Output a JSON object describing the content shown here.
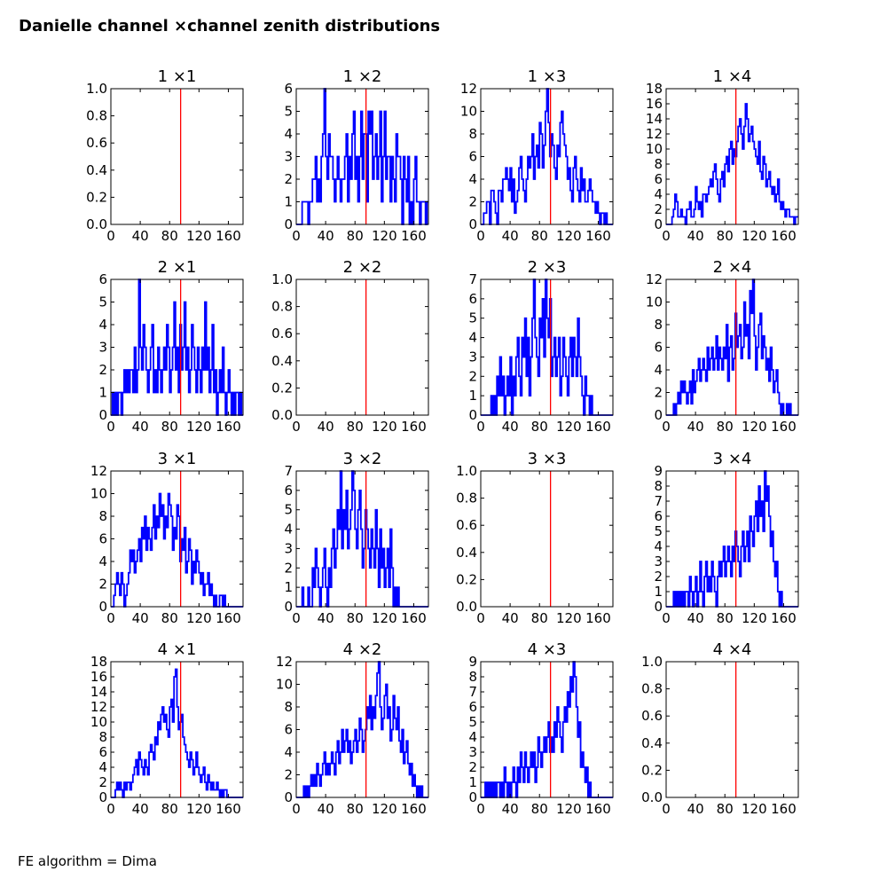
{
  "figure": {
    "title": "Danielle channel ×channel zenith distributions",
    "footer": "FE algorithm = Dima"
  },
  "colors": {
    "histogram": "#0000ff",
    "reference_line": "#ff0000",
    "axes": "#000000"
  },
  "chart_data": {
    "type": "step",
    "layout": {
      "rows": 4,
      "cols": 4
    },
    "x_range": [
      0,
      180
    ],
    "x_ticks": [
      0,
      40,
      80,
      120,
      160
    ],
    "reference_line_x": 95,
    "bin_width": 2,
    "panels": [
      {
        "title": "1 ×1",
        "ylim": [
          0,
          1.0
        ],
        "y_ticks": [
          "0.0",
          "0.2",
          "0.4",
          "0.6",
          "0.8",
          "1.0"
        ],
        "counts": []
      },
      {
        "title": "1 ×2",
        "ylim": [
          0,
          6
        ],
        "y_ticks": [
          "0",
          "1",
          "2",
          "3",
          "4",
          "5",
          "6"
        ],
        "counts": [
          0,
          0,
          0,
          0,
          1,
          1,
          1,
          1,
          0,
          1,
          1,
          2,
          2,
          3,
          1,
          2,
          1,
          3,
          4,
          6,
          3,
          2,
          4,
          3,
          3,
          2,
          1,
          2,
          3,
          2,
          1,
          2,
          2,
          3,
          4,
          1,
          3,
          2,
          4,
          5,
          2,
          3,
          1,
          3,
          5,
          2,
          4,
          4,
          1,
          5,
          4,
          5,
          2,
          3,
          4,
          2,
          3,
          5,
          1,
          3,
          5,
          2,
          3,
          3,
          1,
          3,
          2,
          1,
          4,
          3,
          3,
          2,
          0,
          3,
          2,
          1,
          3,
          0,
          1,
          0,
          2,
          3,
          1,
          1,
          0,
          1,
          1,
          1,
          0,
          1
        ]
      },
      {
        "title": "1 ×3",
        "ylim": [
          0,
          12
        ],
        "y_ticks": [
          "0",
          "2",
          "4",
          "6",
          "8",
          "10",
          "12"
        ],
        "counts": [
          0,
          0,
          1,
          1,
          2,
          2,
          0,
          3,
          3,
          2,
          1,
          0,
          3,
          3,
          2,
          4,
          4,
          5,
          4,
          3,
          5,
          2,
          4,
          1,
          2,
          3,
          5,
          6,
          4,
          3,
          2,
          4,
          6,
          5,
          6,
          8,
          4,
          6,
          7,
          5,
          9,
          8,
          5,
          7,
          10,
          12,
          9,
          6,
          8,
          7,
          5,
          4,
          7,
          6,
          9,
          10,
          8,
          7,
          6,
          4,
          5,
          3,
          2,
          5,
          6,
          4,
          3,
          2,
          5,
          3,
          4,
          2,
          2,
          3,
          4,
          3,
          2,
          2,
          1,
          2,
          1,
          0,
          1,
          1,
          0,
          1,
          0,
          0,
          0,
          0
        ]
      },
      {
        "title": "1 ×4",
        "ylim": [
          0,
          18
        ],
        "y_ticks": [
          "0",
          "2",
          "4",
          "6",
          "8",
          "10",
          "12",
          "14",
          "16",
          "18"
        ],
        "counts": [
          0,
          0,
          0,
          0,
          1,
          2,
          4,
          3,
          1,
          1,
          2,
          1,
          1,
          0,
          2,
          2,
          3,
          1,
          1,
          2,
          5,
          3,
          2,
          3,
          1,
          4,
          4,
          3,
          4,
          5,
          6,
          5,
          7,
          8,
          6,
          4,
          3,
          6,
          7,
          5,
          8,
          9,
          7,
          10,
          11,
          8,
          10,
          9,
          11,
          13,
          14,
          12,
          10,
          13,
          16,
          14,
          11,
          12,
          13,
          11,
          10,
          9,
          8,
          11,
          7,
          6,
          9,
          8,
          5,
          6,
          7,
          5,
          4,
          5,
          3,
          4,
          6,
          3,
          2,
          3,
          2,
          1,
          2,
          2,
          1,
          1,
          1,
          0,
          1,
          1
        ]
      },
      {
        "title": "2 ×1",
        "ylim": [
          0,
          6
        ],
        "y_ticks": [
          "0",
          "1",
          "2",
          "3",
          "4",
          "5",
          "6"
        ],
        "counts": [
          0,
          1,
          0,
          1,
          0,
          1,
          1,
          0,
          1,
          2,
          1,
          2,
          1,
          2,
          2,
          1,
          3,
          1,
          2,
          6,
          3,
          2,
          4,
          3,
          2,
          1,
          2,
          3,
          4,
          1,
          2,
          1,
          3,
          2,
          1,
          2,
          3,
          2,
          4,
          3,
          1,
          2,
          3,
          5,
          2,
          3,
          1,
          4,
          2,
          3,
          5,
          2,
          3,
          1,
          2,
          4,
          3,
          2,
          1,
          3,
          2,
          1,
          3,
          2,
          5,
          2,
          3,
          1,
          2,
          4,
          1,
          2,
          0,
          1,
          2,
          1,
          3,
          1,
          0,
          1,
          2,
          1,
          0,
          1,
          0,
          1,
          1,
          0,
          1,
          0
        ]
      },
      {
        "title": "2 ×2",
        "ylim": [
          0,
          1.0
        ],
        "y_ticks": [
          "0.0",
          "0.2",
          "0.4",
          "0.6",
          "0.8",
          "1.0"
        ],
        "counts": []
      },
      {
        "title": "2 ×3",
        "ylim": [
          0,
          7
        ],
        "y_ticks": [
          "0",
          "1",
          "2",
          "3",
          "4",
          "5",
          "6",
          "7"
        ],
        "counts": [
          0,
          0,
          0,
          0,
          0,
          0,
          0,
          1,
          0,
          1,
          0,
          2,
          1,
          3,
          1,
          2,
          0,
          1,
          2,
          1,
          3,
          0,
          2,
          1,
          3,
          4,
          2,
          1,
          4,
          3,
          5,
          2,
          4,
          1,
          3,
          5,
          7,
          4,
          3,
          2,
          5,
          4,
          6,
          3,
          7,
          5,
          4,
          6,
          2,
          3,
          4,
          2,
          3,
          4,
          1,
          2,
          4,
          3,
          2,
          1,
          3,
          4,
          2,
          4,
          3,
          2,
          5,
          3,
          2,
          1,
          0,
          2,
          1,
          1,
          0,
          1,
          0,
          0,
          0,
          0,
          0,
          0,
          0,
          0,
          0,
          0,
          0,
          0,
          0,
          0
        ]
      },
      {
        "title": "2 ×4",
        "ylim": [
          0,
          12
        ],
        "y_ticks": [
          "0",
          "2",
          "4",
          "6",
          "8",
          "10",
          "12"
        ],
        "counts": [
          0,
          0,
          0,
          0,
          0,
          1,
          0,
          1,
          2,
          1,
          3,
          2,
          3,
          2,
          1,
          2,
          3,
          1,
          4,
          2,
          3,
          4,
          5,
          3,
          4,
          5,
          4,
          3,
          6,
          4,
          5,
          6,
          4,
          5,
          7,
          4,
          6,
          5,
          4,
          6,
          5,
          8,
          3,
          6,
          7,
          4,
          5,
          9,
          6,
          7,
          8,
          5,
          6,
          10,
          7,
          8,
          5,
          11,
          9,
          12,
          7,
          4,
          6,
          8,
          9,
          5,
          7,
          6,
          4,
          5,
          3,
          6,
          4,
          2,
          3,
          4,
          2,
          1,
          0,
          1,
          0,
          0,
          1,
          0,
          1,
          0,
          0,
          0,
          0,
          0
        ]
      },
      {
        "title": "3 ×1",
        "ylim": [
          0,
          12
        ],
        "y_ticks": [
          "0",
          "2",
          "4",
          "6",
          "8",
          "10",
          "12"
        ],
        "counts": [
          0,
          0,
          1,
          2,
          3,
          2,
          1,
          3,
          2,
          0,
          1,
          2,
          3,
          5,
          4,
          5,
          3,
          4,
          5,
          6,
          4,
          7,
          6,
          8,
          5,
          7,
          6,
          5,
          7,
          9,
          6,
          8,
          7,
          10,
          8,
          9,
          6,
          8,
          7,
          10,
          9,
          8,
          5,
          7,
          6,
          9,
          8,
          4,
          6,
          5,
          7,
          3,
          4,
          6,
          5,
          2,
          4,
          3,
          5,
          4,
          3,
          2,
          3,
          1,
          2,
          2,
          3,
          1,
          2,
          1,
          0,
          1,
          0,
          0,
          1,
          1,
          0,
          1,
          0,
          0,
          0,
          0,
          0,
          0,
          0,
          0,
          0,
          0,
          0,
          0
        ]
      },
      {
        "title": "3 ×2",
        "ylim": [
          0,
          7
        ],
        "y_ticks": [
          "0",
          "1",
          "2",
          "3",
          "4",
          "5",
          "6",
          "7"
        ],
        "counts": [
          0,
          0,
          0,
          0,
          1,
          0,
          0,
          0,
          1,
          0,
          0,
          2,
          1,
          3,
          2,
          1,
          0,
          1,
          2,
          3,
          1,
          0,
          2,
          1,
          3,
          4,
          2,
          3,
          5,
          4,
          7,
          3,
          5,
          4,
          6,
          3,
          4,
          5,
          7,
          6,
          4,
          3,
          5,
          6,
          4,
          2,
          3,
          5,
          4,
          3,
          2,
          4,
          3,
          2,
          5,
          3,
          1,
          4,
          2,
          3,
          1,
          2,
          3,
          1,
          4,
          2,
          0,
          1,
          0,
          1,
          0,
          0,
          0,
          0,
          0,
          0,
          0,
          0,
          0,
          0,
          0,
          0,
          0,
          0,
          0,
          0,
          0,
          0,
          0,
          0
        ]
      },
      {
        "title": "3 ×3",
        "ylim": [
          0,
          1.0
        ],
        "y_ticks": [
          "0.0",
          "0.2",
          "0.4",
          "0.6",
          "0.8",
          "1.0"
        ],
        "counts": []
      },
      {
        "title": "3 ×4",
        "ylim": [
          0,
          9
        ],
        "y_ticks": [
          "0",
          "1",
          "2",
          "3",
          "4",
          "5",
          "6",
          "7",
          "8",
          "9"
        ],
        "counts": [
          0,
          0,
          0,
          0,
          0,
          1,
          0,
          1,
          0,
          1,
          0,
          1,
          0,
          1,
          1,
          0,
          2,
          1,
          0,
          1,
          2,
          0,
          1,
          3,
          1,
          0,
          2,
          3,
          1,
          2,
          1,
          3,
          2,
          1,
          0,
          2,
          3,
          2,
          3,
          4,
          2,
          3,
          4,
          3,
          2,
          4,
          3,
          5,
          4,
          3,
          2,
          4,
          5,
          3,
          4,
          5,
          3,
          6,
          5,
          4,
          6,
          7,
          5,
          8,
          6,
          7,
          5,
          9,
          7,
          8,
          6,
          4,
          5,
          3,
          2,
          3,
          1,
          0,
          1,
          0,
          0,
          0,
          0,
          0,
          0,
          0,
          0,
          0,
          0,
          0
        ]
      },
      {
        "title": "4 ×1",
        "ylim": [
          0,
          18
        ],
        "y_ticks": [
          "0",
          "2",
          "4",
          "6",
          "8",
          "10",
          "12",
          "14",
          "16",
          "18"
        ],
        "counts": [
          0,
          0,
          0,
          1,
          2,
          1,
          2,
          1,
          0,
          2,
          1,
          2,
          2,
          1,
          2,
          3,
          4,
          5,
          3,
          6,
          5,
          4,
          3,
          5,
          4,
          3,
          6,
          7,
          6,
          5,
          8,
          7,
          10,
          9,
          11,
          12,
          10,
          11,
          9,
          8,
          12,
          13,
          10,
          16,
          17,
          12,
          9,
          10,
          11,
          8,
          7,
          6,
          5,
          4,
          6,
          5,
          3,
          4,
          6,
          4,
          3,
          2,
          3,
          4,
          2,
          1,
          3,
          2,
          1,
          2,
          1,
          1,
          2,
          1,
          0,
          1,
          0,
          1,
          1,
          0,
          0,
          0,
          0,
          0,
          0,
          0,
          0,
          0,
          0,
          0
        ]
      },
      {
        "title": "4 ×2",
        "ylim": [
          0,
          12
        ],
        "y_ticks": [
          "0",
          "2",
          "4",
          "6",
          "8",
          "10",
          "12"
        ],
        "counts": [
          0,
          0,
          0,
          0,
          0,
          1,
          0,
          1,
          0,
          1,
          2,
          1,
          2,
          1,
          3,
          2,
          1,
          2,
          3,
          4,
          2,
          3,
          2,
          3,
          4,
          3,
          2,
          4,
          5,
          3,
          4,
          6,
          4,
          5,
          6,
          4,
          5,
          3,
          4,
          5,
          6,
          4,
          5,
          7,
          6,
          4,
          5,
          6,
          8,
          7,
          9,
          6,
          8,
          7,
          9,
          11,
          12,
          8,
          6,
          7,
          9,
          10,
          7,
          8,
          5,
          6,
          9,
          7,
          6,
          8,
          5,
          4,
          6,
          3,
          4,
          5,
          3,
          2,
          3,
          1,
          2,
          1,
          0,
          1,
          0,
          1,
          0,
          0,
          0,
          0
        ]
      },
      {
        "title": "4 ×3",
        "ylim": [
          0,
          9
        ],
        "y_ticks": [
          "0",
          "1",
          "2",
          "3",
          "4",
          "5",
          "6",
          "7",
          "8",
          "9"
        ],
        "counts": [
          0,
          0,
          0,
          1,
          0,
          1,
          0,
          1,
          0,
          1,
          0,
          1,
          1,
          0,
          1,
          0,
          2,
          1,
          0,
          1,
          0,
          1,
          2,
          1,
          0,
          2,
          1,
          3,
          2,
          1,
          3,
          2,
          1,
          2,
          3,
          2,
          3,
          1,
          2,
          4,
          3,
          2,
          3,
          4,
          3,
          4,
          5,
          3,
          4,
          3,
          5,
          4,
          6,
          5,
          4,
          3,
          5,
          6,
          5,
          7,
          6,
          8,
          7,
          9,
          8,
          6,
          4,
          5,
          2,
          3,
          2,
          1,
          2,
          0,
          1,
          0,
          0,
          0,
          0,
          0,
          0,
          0,
          0,
          0,
          0,
          0,
          0,
          0,
          0,
          0
        ]
      },
      {
        "title": "4 ×4",
        "ylim": [
          0,
          1.0
        ],
        "y_ticks": [
          "0.0",
          "0.2",
          "0.4",
          "0.6",
          "0.8",
          "1.0"
        ],
        "counts": []
      }
    ]
  }
}
